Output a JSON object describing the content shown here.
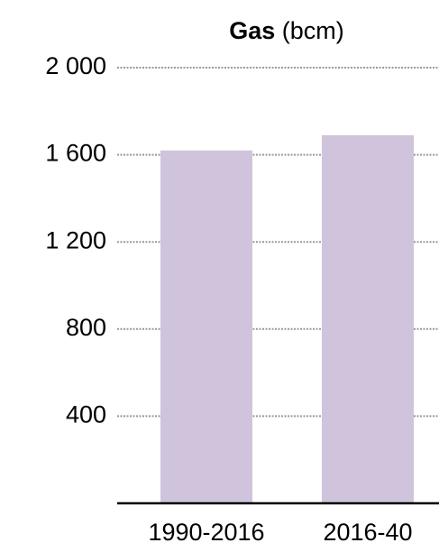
{
  "chart_data": {
    "type": "bar",
    "title": "Gas",
    "title_unit": "(bcm)",
    "categories": [
      "1990-2016",
      "2016-40"
    ],
    "values": [
      1620,
      1690
    ],
    "color": "#cfc4dc",
    "ylim": [
      0,
      2000
    ],
    "yticks": [
      {
        "value": 400,
        "label": "400"
      },
      {
        "value": 800,
        "label": "800"
      },
      {
        "value": 1200,
        "label": "1 200"
      },
      {
        "value": 1600,
        "label": "1 600"
      },
      {
        "value": 2000,
        "label": "2 000"
      }
    ],
    "grid": true
  }
}
